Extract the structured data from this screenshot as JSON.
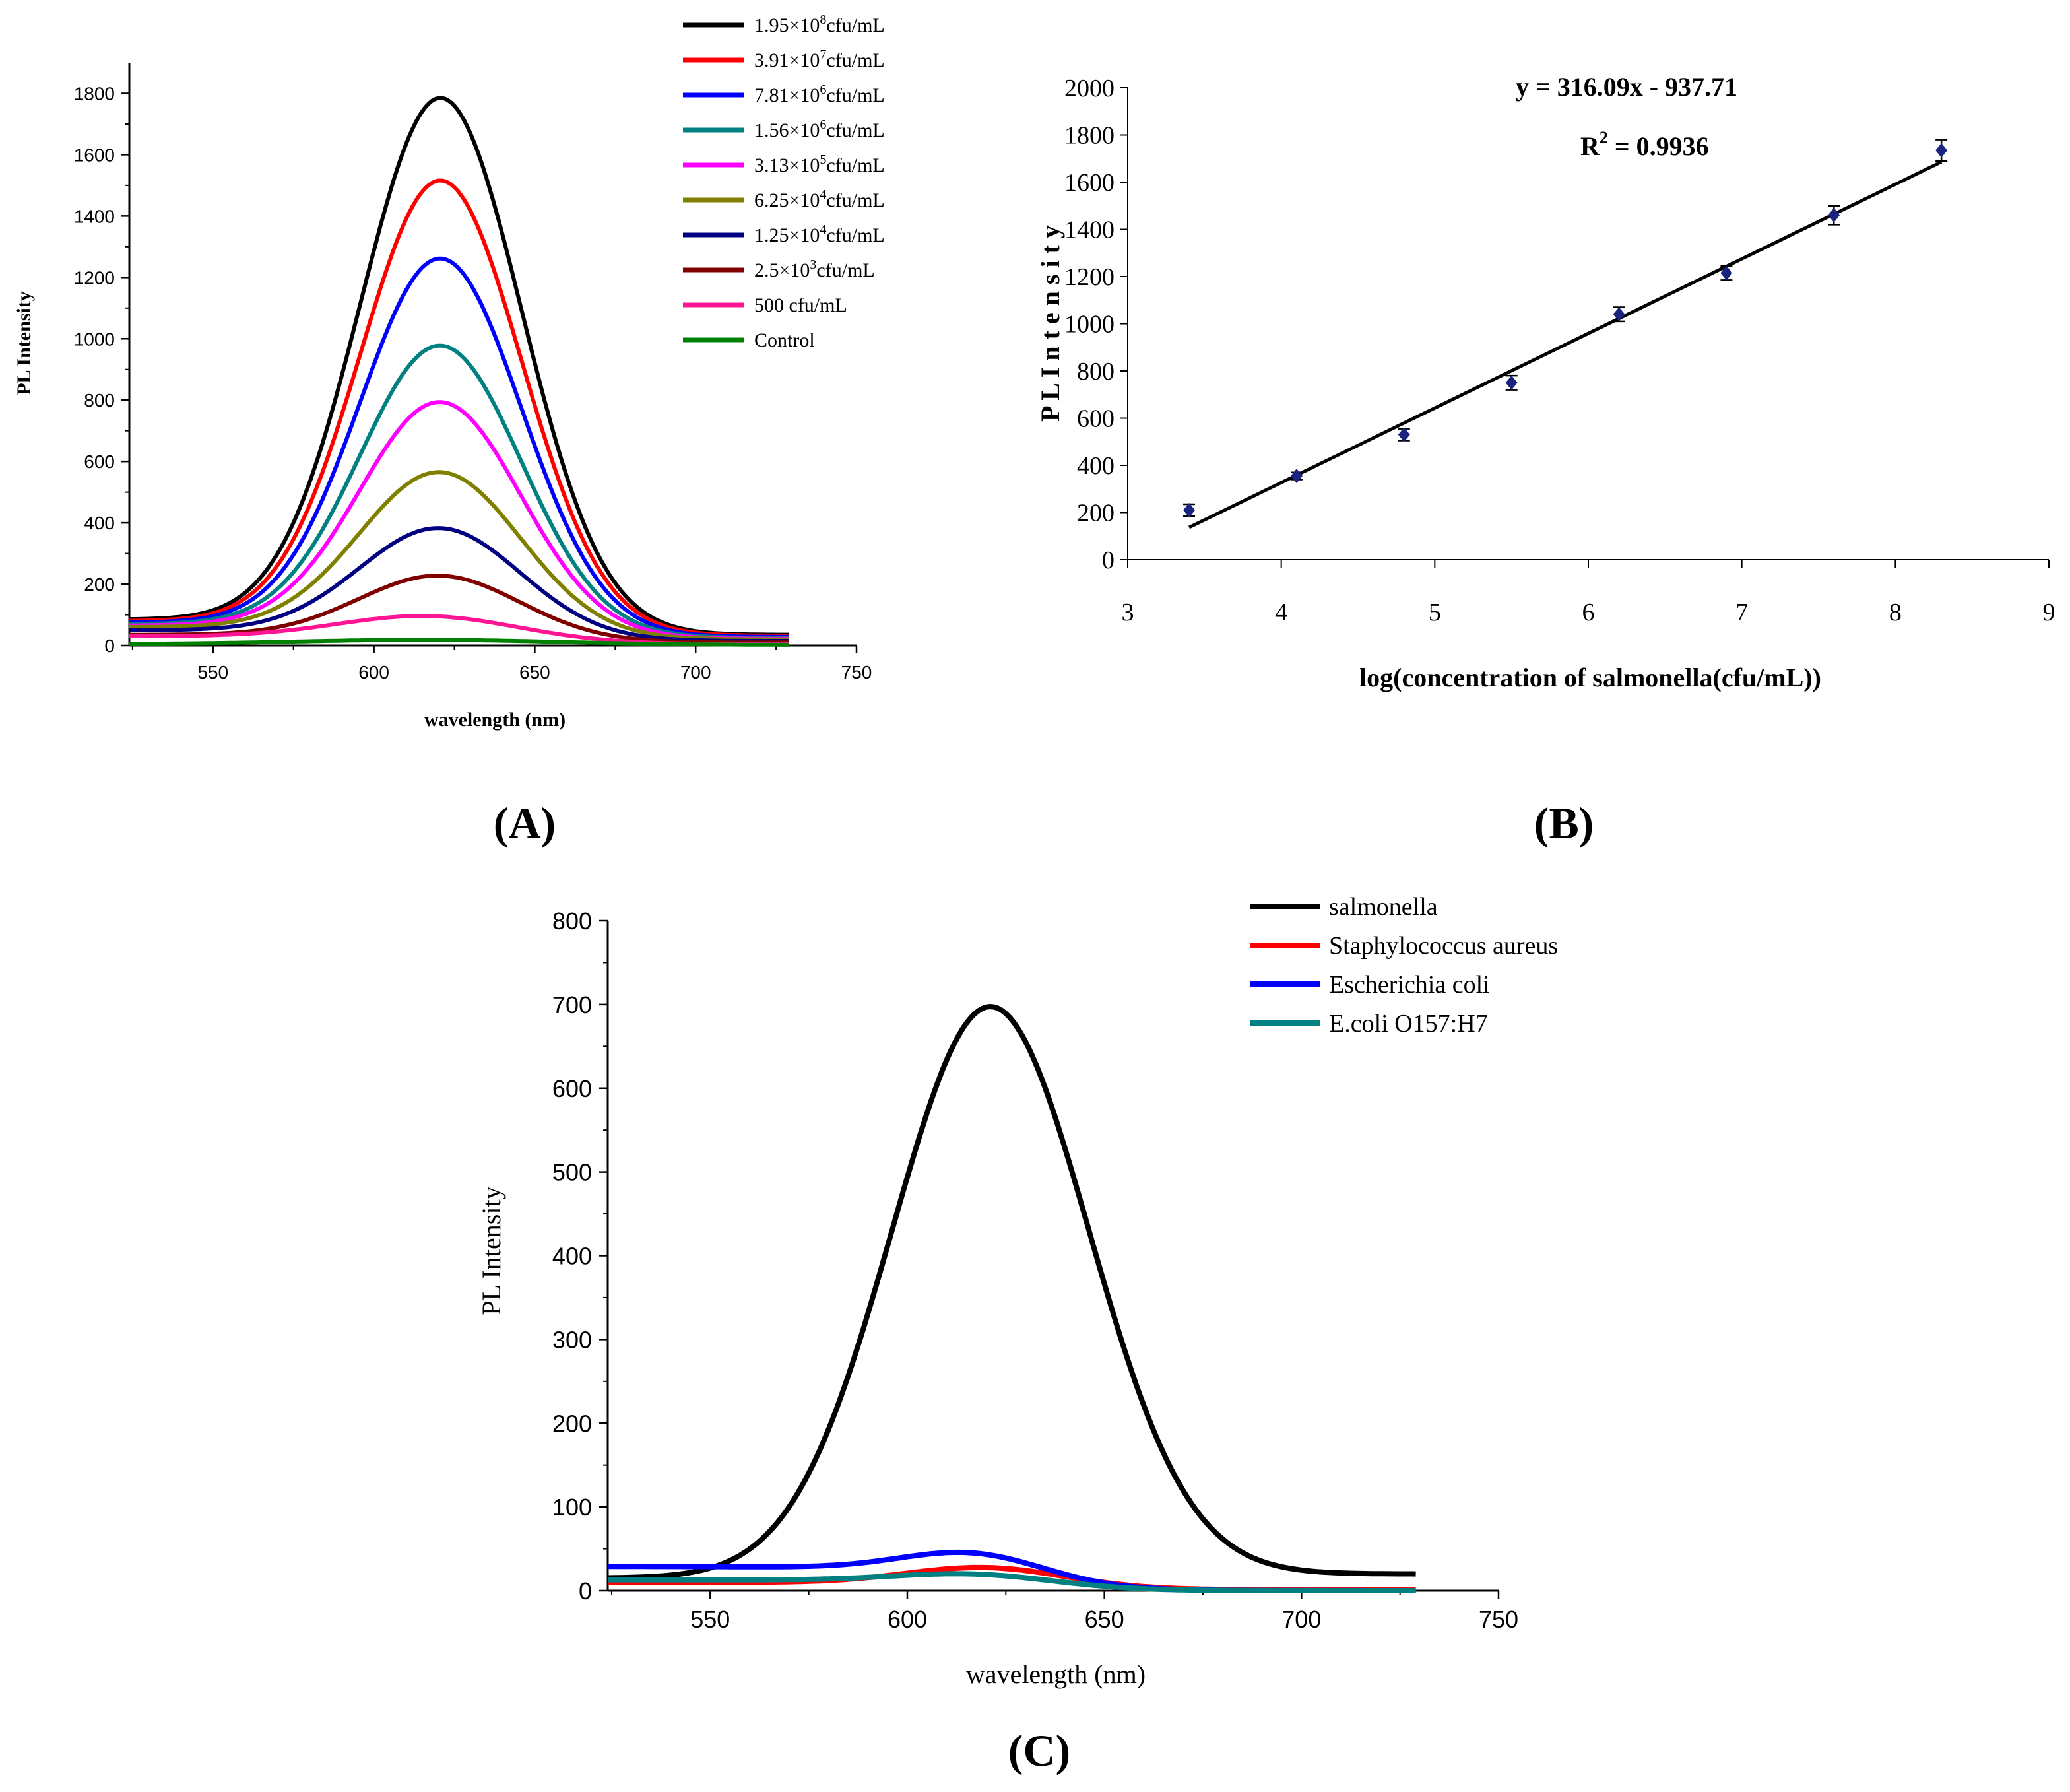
{
  "chart_data": [
    {
      "panel": "A",
      "panel_label": "(A)",
      "type": "line",
      "xlabel": "wavelength (nm)",
      "ylabel": "PL Intensity",
      "xlim": [
        524,
        750
      ],
      "ylim": [
        0,
        1900
      ],
      "xticks": [
        "550",
        "600",
        "650",
        "700",
        "750"
      ],
      "yticks": [
        "0",
        "200",
        "400",
        "600",
        "800",
        "1000",
        "1200",
        "1400",
        "1600",
        "1800"
      ],
      "xtick_values": [
        550,
        600,
        650,
        700,
        750
      ],
      "ytick_values": [
        0,
        200,
        400,
        600,
        800,
        1000,
        1200,
        1400,
        1600,
        1800
      ],
      "x_range": [
        524,
        729
      ],
      "legend_position": "top-right",
      "series": [
        {
          "name_parts": [
            "1.95×10",
            "8",
            "cfu/mL"
          ],
          "color": "#000000",
          "peak": 1725,
          "center": 621,
          "width": 25,
          "baseline_start": 85,
          "baseline_end": 35
        },
        {
          "name_parts": [
            "3.91×10",
            "7",
            "cfu/mL"
          ],
          "color": "#ff0000",
          "peak": 1460,
          "center": 621,
          "width": 25,
          "baseline_start": 80,
          "baseline_end": 32
        },
        {
          "name_parts": [
            "7.81×10",
            "6",
            "cfu/mL"
          ],
          "color": "#0000ff",
          "peak": 1210,
          "center": 621,
          "width": 25,
          "baseline_start": 75,
          "baseline_end": 28
        },
        {
          "name_parts": [
            "1.56×10",
            "6",
            "cfu/mL"
          ],
          "color": "#008080",
          "peak": 930,
          "center": 621,
          "width": 25,
          "baseline_start": 70,
          "baseline_end": 25
        },
        {
          "name_parts": [
            "3.13×10",
            "5",
            "cfu/mL"
          ],
          "color": "#ff00ff",
          "peak": 750,
          "center": 621,
          "width": 25,
          "baseline_start": 65,
          "baseline_end": 22
        },
        {
          "name_parts": [
            "6.25×10",
            "4",
            "cfu/mL"
          ],
          "color": "#808000",
          "peak": 525,
          "center": 621,
          "width": 25,
          "baseline_start": 60,
          "baseline_end": 20
        },
        {
          "name_parts": [
            "1.25×10",
            "4",
            "cfu/mL"
          ],
          "color": "#000080",
          "peak": 350,
          "center": 621,
          "width": 25,
          "baseline_start": 50,
          "baseline_end": 15
        },
        {
          "name_parts": [
            "2.5×10",
            "3",
            "cfu/mL"
          ],
          "color": "#800000",
          "peak": 205,
          "center": 621,
          "width": 25,
          "baseline_start": 35,
          "baseline_end": 10
        },
        {
          "name_parts": [
            "500 cfu/mL",
            "",
            ""
          ],
          "color": "#ff1493",
          "peak": 78,
          "center": 619,
          "width": 28,
          "baseline_start": 30,
          "baseline_end": 5
        },
        {
          "name_parts": [
            "Control",
            "",
            ""
          ],
          "color": "#008000",
          "peak": 15,
          "center": 620,
          "width": 40,
          "baseline_start": 5,
          "baseline_end": 2
        }
      ]
    },
    {
      "panel": "B",
      "panel_label": "(B)",
      "type": "scatter",
      "xlabel": "log(concentration of salmonella(cfu/mL))",
      "ylabel": "P L  I n t e n s i t y",
      "xlim": [
        3,
        9
      ],
      "ylim": [
        0,
        2000
      ],
      "xticks": [
        "3",
        "4",
        "5",
        "6",
        "7",
        "8",
        "9"
      ],
      "yticks": [
        "0",
        "200",
        "400",
        "600",
        "800",
        "1000",
        "1200",
        "1400",
        "1600",
        "1800",
        "2000"
      ],
      "xtick_values": [
        3,
        4,
        5,
        6,
        7,
        8,
        9
      ],
      "ytick_values": [
        0,
        200,
        400,
        600,
        800,
        1000,
        1200,
        1400,
        1600,
        1800,
        2000
      ],
      "equation": "y = 316.09x - 937.71",
      "r2_prefix": "R",
      "r2_sup": "2",
      "r2_value": " = 0.9936",
      "fit": {
        "slope": 316.09,
        "intercept": -937.71,
        "x_start": 3.4,
        "x_end": 8.3
      },
      "points": [
        {
          "x": 3.4,
          "y": 210,
          "err": 25
        },
        {
          "x": 4.1,
          "y": 355,
          "err": 15
        },
        {
          "x": 4.8,
          "y": 530,
          "err": 25
        },
        {
          "x": 5.5,
          "y": 750,
          "err": 30
        },
        {
          "x": 6.2,
          "y": 1040,
          "err": 30
        },
        {
          "x": 6.9,
          "y": 1215,
          "err": 30
        },
        {
          "x": 7.6,
          "y": 1460,
          "err": 40
        },
        {
          "x": 8.3,
          "y": 1735,
          "err": 45
        }
      ],
      "marker_color": "#1a237e"
    },
    {
      "panel": "C",
      "panel_label": "(C)",
      "type": "line",
      "xlabel": "wavelength (nm)",
      "ylabel": "PL Intensity",
      "xlim": [
        524,
        750
      ],
      "ylim": [
        0,
        800
      ],
      "xticks": [
        "550",
        "600",
        "650",
        "700",
        "750"
      ],
      "yticks": [
        "0",
        "100",
        "200",
        "300",
        "400",
        "500",
        "600",
        "700",
        "800"
      ],
      "xtick_values": [
        550,
        600,
        650,
        700,
        750
      ],
      "ytick_values": [
        0,
        100,
        200,
        300,
        400,
        500,
        600,
        700,
        800
      ],
      "x_range": [
        524,
        729
      ],
      "legend_position": "top-right",
      "series": [
        {
          "name": "salmonella",
          "color": "#000000",
          "peak": 680,
          "center": 621,
          "width": 25,
          "baseline_start": 15,
          "baseline_end": 20
        },
        {
          "name": "Staphylococcus aureus",
          "color": "#ff0000",
          "peak": 22,
          "center": 621,
          "width": 20,
          "baseline_start": 10,
          "baseline_end": 1
        },
        {
          "name": "Escherichia coli",
          "color": "#0000ff",
          "peak": 30,
          "center": 618,
          "width": 18,
          "baseline_start": 29,
          "baseline_end": 0
        },
        {
          "name": "E.coli O157:H7",
          "color": "#008080",
          "peak": 13,
          "center": 619,
          "width": 20,
          "baseline_start": 13,
          "baseline_end": 0
        }
      ]
    }
  ]
}
